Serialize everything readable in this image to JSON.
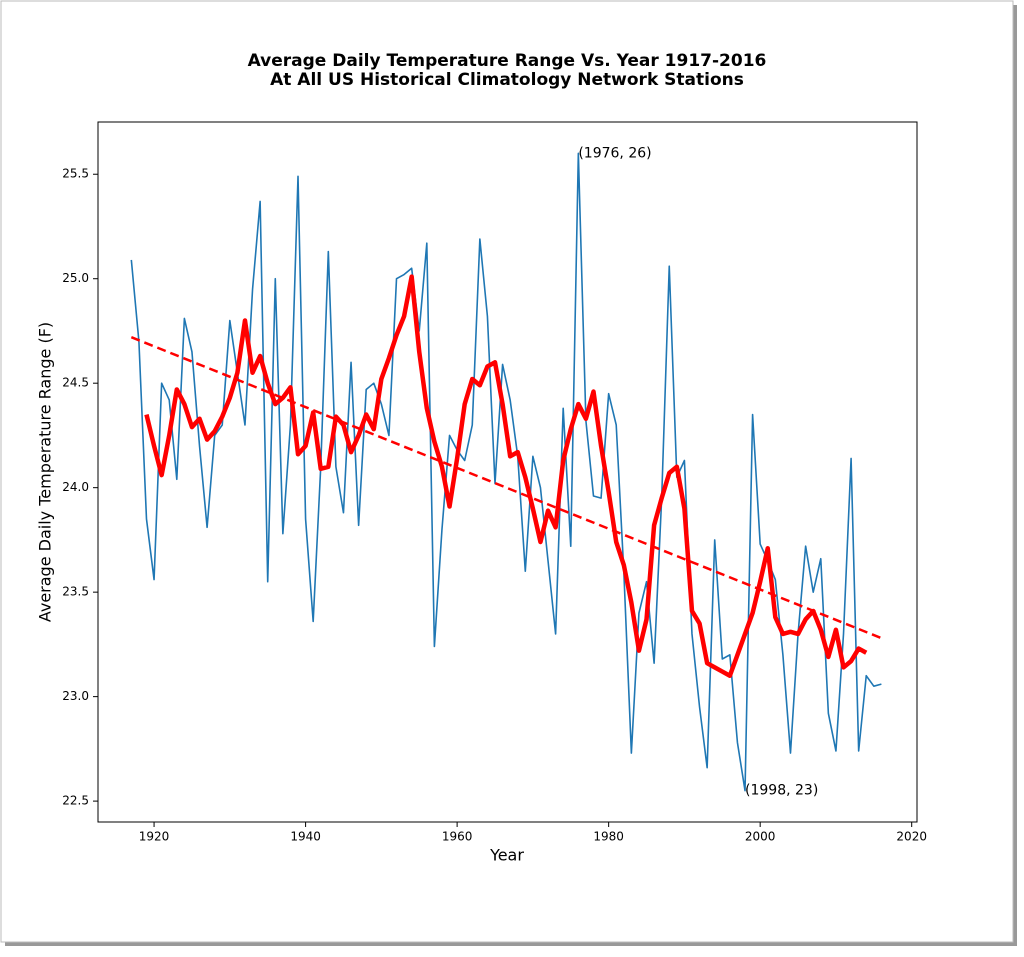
{
  "chart_data": {
    "type": "line",
    "title": [
      "Average Daily Temperature Range Vs. Year 1917-2016",
      "At All US Historical Climatology Network Stations"
    ],
    "xlabel": "Year",
    "ylabel": "Average Daily Temperature Range (F)",
    "xlim": [
      1912.6,
      2020.7
    ],
    "ylim": [
      22.4,
      25.75
    ],
    "xticks": [
      1920,
      1940,
      1960,
      1980,
      2000,
      2020
    ],
    "yticks": [
      22.5,
      {
        "value": 23,
        "label": "23.0"
      },
      23.5,
      {
        "value": 24,
        "label": "24.0"
      },
      24.5,
      {
        "value": 25,
        "label": "25.0"
      },
      25.5
    ],
    "series": [
      {
        "color": "#1f77b4",
        "width": 1.6,
        "dashed": false,
        "x": [
          1917,
          1918,
          1919,
          1920,
          1921,
          1922,
          1923,
          1924,
          1925,
          1926,
          1927,
          1928,
          1929,
          1930,
          1931,
          1932,
          1933,
          1934,
          1935,
          1936,
          1937,
          1938,
          1939,
          1940,
          1941,
          1942,
          1943,
          1944,
          1945,
          1946,
          1947,
          1948,
          1949,
          1950,
          1951,
          1952,
          1953,
          1954,
          1955,
          1956,
          1957,
          1958,
          1959,
          1960,
          1961,
          1962,
          1963,
          1964,
          1965,
          1966,
          1967,
          1968,
          1969,
          1970,
          1971,
          1972,
          1973,
          1974,
          1975,
          1976,
          1977,
          1978,
          1979,
          1980,
          1981,
          1982,
          1983,
          1984,
          1985,
          1986,
          1987,
          1988,
          1989,
          1990,
          1991,
          1992,
          1993,
          1994,
          1995,
          1996,
          1997,
          1998,
          1999,
          2000,
          2001,
          2002,
          2003,
          2004,
          2005,
          2006,
          2007,
          2008,
          2009,
          2010,
          2011,
          2012,
          2013,
          2014,
          2015,
          2016
        ],
        "values": [
          25.09,
          24.7,
          23.85,
          23.56,
          24.5,
          24.42,
          24.04,
          24.81,
          24.65,
          24.2,
          23.81,
          24.25,
          24.3,
          24.8,
          24.55,
          24.3,
          24.95,
          25.37,
          23.55,
          25.0,
          23.78,
          24.3,
          25.49,
          23.85,
          23.36,
          24.1,
          25.13,
          24.1,
          23.88,
          24.6,
          23.82,
          24.47,
          24.5,
          24.4,
          24.25,
          25.0,
          25.02,
          25.05,
          24.75,
          25.17,
          23.24,
          23.8,
          24.25,
          24.18,
          24.13,
          24.3,
          25.19,
          24.82,
          24.02,
          24.59,
          24.42,
          24.15,
          23.6,
          24.15,
          24.0,
          23.65,
          23.3,
          24.38,
          23.72,
          25.6,
          24.32,
          23.96,
          23.95,
          24.45,
          24.3,
          23.6,
          22.73,
          23.4,
          23.55,
          23.16,
          23.95,
          25.06,
          24.05,
          24.13,
          23.3,
          22.95,
          22.66,
          23.75,
          23.18,
          23.2,
          22.78,
          22.55,
          24.35,
          23.73,
          23.65,
          23.56,
          23.2,
          22.73,
          23.3,
          23.72,
          23.5,
          23.66,
          22.92,
          22.74,
          23.3,
          24.14,
          22.74,
          23.1,
          23.05,
          23.06
        ]
      },
      {
        "color": "#ff0000",
        "width": 4.5,
        "dashed": false,
        "x": [
          1919,
          1920,
          1921,
          1922,
          1923,
          1924,
          1925,
          1926,
          1927,
          1928,
          1929,
          1930,
          1931,
          1932,
          1933,
          1934,
          1935,
          1936,
          1937,
          1938,
          1939,
          1940,
          1941,
          1942,
          1943,
          1944,
          1945,
          1946,
          1947,
          1948,
          1949,
          1950,
          1951,
          1952,
          1953,
          1954,
          1955,
          1956,
          1957,
          1958,
          1959,
          1960,
          1961,
          1962,
          1963,
          1964,
          1965,
          1966,
          1967,
          1968,
          1969,
          1970,
          1971,
          1972,
          1973,
          1974,
          1975,
          1976,
          1977,
          1978,
          1979,
          1980,
          1981,
          1982,
          1983,
          1984,
          1985,
          1986,
          1987,
          1988,
          1989,
          1990,
          1991,
          1992,
          1993,
          1994,
          1995,
          1996,
          1997,
          1998,
          1999,
          2000,
          2001,
          2002,
          2003,
          2004,
          2005,
          2006,
          2007,
          2008,
          2009,
          2010,
          2011,
          2012,
          2013,
          2014
        ],
        "values": [
          24.35,
          24.2,
          24.06,
          24.25,
          24.47,
          24.4,
          24.29,
          24.33,
          24.23,
          24.27,
          24.34,
          24.43,
          24.55,
          24.8,
          24.55,
          24.63,
          24.5,
          24.4,
          24.43,
          24.48,
          24.16,
          24.2,
          24.36,
          24.09,
          24.1,
          24.34,
          24.3,
          24.17,
          24.25,
          24.35,
          24.28,
          24.52,
          24.62,
          24.73,
          24.82,
          25.01,
          24.65,
          24.38,
          24.22,
          24.1,
          23.91,
          24.14,
          24.4,
          24.52,
          24.49,
          24.58,
          24.6,
          24.4,
          24.15,
          24.17,
          24.05,
          23.9,
          23.74,
          23.89,
          23.81,
          24.13,
          24.28,
          24.4,
          24.33,
          24.46,
          24.2,
          23.98,
          23.74,
          23.63,
          23.45,
          23.22,
          23.37,
          23.82,
          23.95,
          24.07,
          24.1,
          23.9,
          23.41,
          23.35,
          23.16,
          23.14,
          23.12,
          23.1,
          23.2,
          23.3,
          23.4,
          23.55,
          23.71,
          23.38,
          23.3,
          23.31,
          23.3,
          23.37,
          23.41,
          23.32,
          23.19,
          23.32,
          23.14,
          23.17,
          23.23,
          23.21
        ]
      },
      {
        "color": "#ff0000",
        "width": 2.5,
        "dashed": true,
        "x": [
          1917,
          2016
        ],
        "values": [
          24.72,
          23.28
        ]
      }
    ],
    "annotations": [
      {
        "text": "(1976, 26)",
        "x": 1976,
        "y": 25.6
      },
      {
        "text": "(1998, 23)",
        "x": 1998,
        "y": 22.55
      }
    ]
  }
}
